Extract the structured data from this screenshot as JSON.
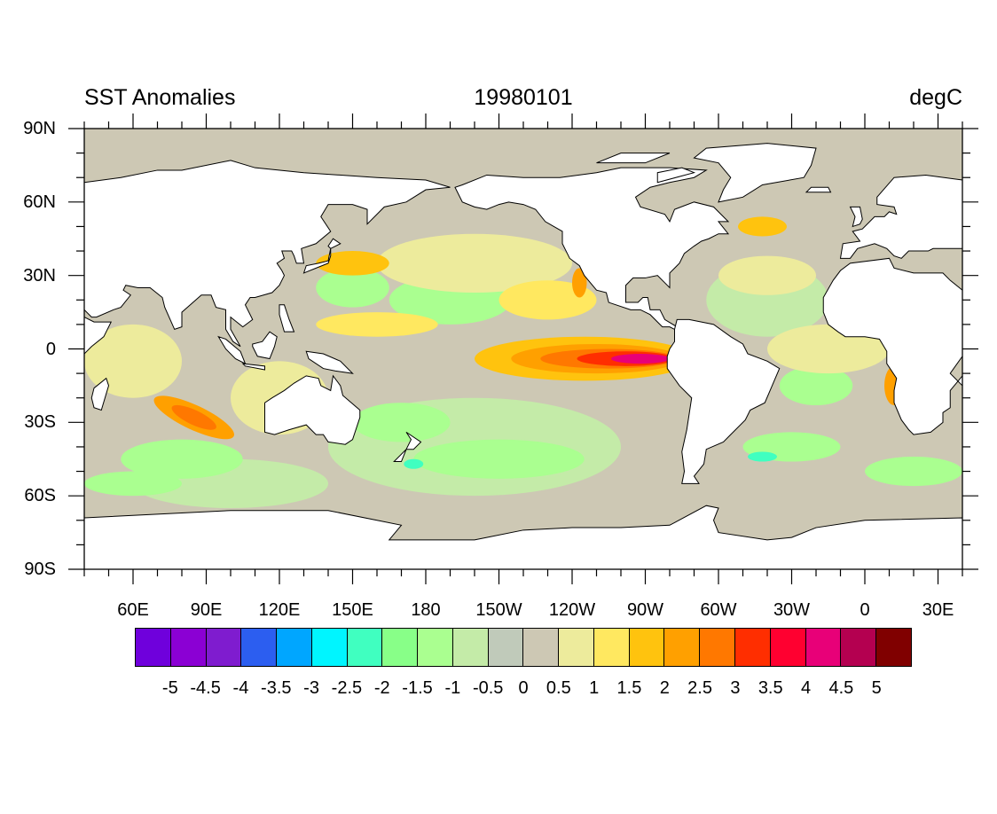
{
  "header": {
    "title": "SST Anomalies",
    "date": "19980101",
    "units": "degC"
  },
  "axes": {
    "lat_labels": [
      {
        "lat": 90,
        "label": "90N"
      },
      {
        "lat": 60,
        "label": "60N"
      },
      {
        "lat": 30,
        "label": "30N"
      },
      {
        "lat": 0,
        "label": "0"
      },
      {
        "lat": -30,
        "label": "30S"
      },
      {
        "lat": -60,
        "label": "60S"
      },
      {
        "lat": -90,
        "label": "90S"
      }
    ],
    "lon_labels": [
      {
        "lon": 60,
        "label": "60E"
      },
      {
        "lon": 90,
        "label": "90E"
      },
      {
        "lon": 120,
        "label": "120E"
      },
      {
        "lon": 150,
        "label": "150E"
      },
      {
        "lon": 180,
        "label": "180"
      },
      {
        "lon": 210,
        "label": "150W"
      },
      {
        "lon": 240,
        "label": "120W"
      },
      {
        "lon": 270,
        "label": "90W"
      },
      {
        "lon": 300,
        "label": "60W"
      },
      {
        "lon": 330,
        "label": "30W"
      },
      {
        "lon": 360,
        "label": "0"
      },
      {
        "lon": 390,
        "label": "30E"
      }
    ],
    "lon_range": [
      40,
      400
    ],
    "lat_range": [
      -90,
      90
    ]
  },
  "colorbar": {
    "levels": [
      "-5",
      "-4.5",
      "-4",
      "-3.5",
      "-3",
      "-2.5",
      "-2",
      "-1.5",
      "-1",
      "-0.5",
      "0",
      "0.5",
      "1",
      "1.5",
      "2",
      "2.5",
      "3",
      "3.5",
      "4",
      "4.5",
      "5"
    ],
    "colors": [
      "#6F00DC",
      "#8B00D4",
      "#7F1CCF",
      "#2C5EF0",
      "#00A6FF",
      "#00F5FF",
      "#40FFC0",
      "#88FF88",
      "#AAFF90",
      "#C4EBA8",
      "#C0CABA",
      "#CDC8B4",
      "#EDEB9C",
      "#FFE860",
      "#FFC30E",
      "#FFA000",
      "#FF7800",
      "#FF2E00",
      "#FF0030",
      "#E80078",
      "#B40050",
      "#800000"
    ]
  }
}
